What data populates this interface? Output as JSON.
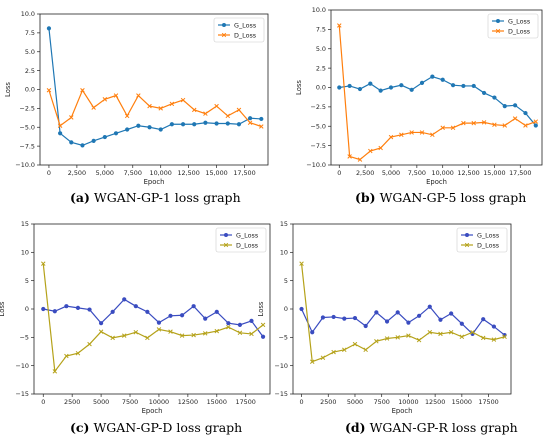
{
  "chart_data": [
    {
      "type": "line",
      "caption_tag": "(a)",
      "caption_text": "WGAN-GP-1 loss graph",
      "xlabel": "Epoch",
      "ylabel": "Loss",
      "xlim": [
        -800,
        19600
      ],
      "ylim": [
        -10,
        10
      ],
      "xticks": [
        0,
        2500,
        5000,
        7500,
        10000,
        12500,
        15000,
        17500
      ],
      "xtick_labels": [
        "0",
        "2,500",
        "5,000",
        "7,500",
        "10,000",
        "12,500",
        "15,000",
        "17,500"
      ],
      "yticks": [
        -10,
        -7.5,
        -5,
        -2.5,
        0,
        2.5,
        5,
        7.5,
        10
      ],
      "ytick_labels": [
        "−10.0",
        "−7.5",
        "−5.0",
        "−2.5",
        "0.0",
        "2.5",
        "5.0",
        "7.5",
        "10.0"
      ],
      "legend_position": "top-right",
      "x": [
        0,
        1000,
        2000,
        3000,
        4000,
        5000,
        6000,
        7000,
        8000,
        9000,
        10000,
        11000,
        12000,
        13000,
        14000,
        15000,
        16000,
        17000,
        18000,
        19000
      ],
      "series": [
        {
          "name": "G_Loss",
          "color": "#1f77b4",
          "marker": "circle",
          "values": [
            8.1,
            -5.8,
            -7.0,
            -7.4,
            -6.8,
            -6.3,
            -5.8,
            -5.3,
            -4.8,
            -5.0,
            -5.3,
            -4.6,
            -4.6,
            -4.6,
            -4.4,
            -4.5,
            -4.5,
            -4.6,
            -3.8,
            -3.9
          ]
        },
        {
          "name": "D_Loss",
          "color": "#ff7f0e",
          "marker": "x",
          "values": [
            -0.1,
            -4.8,
            -3.7,
            -0.1,
            -2.4,
            -1.3,
            -0.8,
            -3.5,
            -0.8,
            -2.2,
            -2.5,
            -1.9,
            -1.4,
            -2.7,
            -3.2,
            -2.2,
            -3.5,
            -2.7,
            -4.4,
            -4.9
          ]
        }
      ]
    },
    {
      "type": "line",
      "caption_tag": "(b)",
      "caption_text": "WGAN-GP-5 loss graph",
      "xlabel": "Epoch",
      "ylabel": "Loss",
      "xlim": [
        -800,
        19600
      ],
      "ylim": [
        -10,
        10
      ],
      "xticks": [
        0,
        2500,
        5000,
        7500,
        10000,
        12500,
        15000,
        17500
      ],
      "xtick_labels": [
        "0",
        "2,500",
        "5,000",
        "7,500",
        "10,000",
        "12,500",
        "15,000",
        "17,500"
      ],
      "yticks": [
        -10,
        -7.5,
        -5,
        -2.5,
        0,
        2.5,
        5,
        7.5,
        10
      ],
      "ytick_labels": [
        "−10.0",
        "−7.5",
        "−5.0",
        "−2.5",
        "0.0",
        "2.5",
        "5.0",
        "7.5",
        "10.0"
      ],
      "legend_position": "top-right",
      "x": [
        0,
        1000,
        2000,
        3000,
        4000,
        5000,
        6000,
        7000,
        8000,
        9000,
        10000,
        11000,
        12000,
        13000,
        14000,
        15000,
        16000,
        17000,
        18000,
        19000
      ],
      "series": [
        {
          "name": "G_Loss",
          "color": "#1f77b4",
          "marker": "circle",
          "values": [
            0.0,
            0.2,
            -0.2,
            0.5,
            -0.4,
            0.0,
            0.3,
            -0.3,
            0.6,
            1.4,
            1.0,
            0.3,
            0.2,
            0.2,
            -0.7,
            -1.3,
            -2.4,
            -2.3,
            -3.3,
            -4.9
          ]
        },
        {
          "name": "D_Loss",
          "color": "#ff7f0e",
          "marker": "x",
          "values": [
            8.0,
            -8.9,
            -9.3,
            -8.2,
            -7.8,
            -6.4,
            -6.1,
            -5.8,
            -5.8,
            -6.1,
            -5.2,
            -5.2,
            -4.6,
            -4.6,
            -4.5,
            -4.8,
            -4.9,
            -4.0,
            -4.9,
            -4.4
          ]
        }
      ]
    },
    {
      "type": "line",
      "caption_tag": "(c)",
      "caption_text": "WGAN-GP-D loss graph",
      "xlabel": "Epoch",
      "ylabel": "Loss",
      "xlim": [
        -800,
        19600
      ],
      "ylim": [
        -15,
        15
      ],
      "xticks": [
        0,
        2500,
        5000,
        7500,
        10000,
        12500,
        15000,
        17500
      ],
      "xtick_labels": [
        "0",
        "2500",
        "5000",
        "7500",
        "10000",
        "12500",
        "15000",
        "17500"
      ],
      "yticks": [
        -15,
        -10,
        -5,
        0,
        5,
        10,
        15
      ],
      "ytick_labels": [
        "−15",
        "−10",
        "−5",
        "0",
        "5",
        "10",
        "15"
      ],
      "legend_position": "top-right",
      "x": [
        0,
        1000,
        2000,
        3000,
        4000,
        5000,
        6000,
        7000,
        8000,
        9000,
        10000,
        11000,
        12000,
        13000,
        14000,
        15000,
        16000,
        17000,
        18000,
        19000
      ],
      "series": [
        {
          "name": "G_Loss",
          "color": "#3a4cc0",
          "marker": "circle",
          "values": [
            0.0,
            -0.4,
            0.5,
            0.2,
            -0.1,
            -2.5,
            -0.5,
            1.7,
            0.5,
            -0.5,
            -2.4,
            -1.2,
            -1.1,
            0.5,
            -1.7,
            -0.5,
            -2.5,
            -2.8,
            -2.1,
            -4.9
          ]
        },
        {
          "name": "D_Loss",
          "color": "#b5a21a",
          "marker": "x",
          "values": [
            8.0,
            -11.0,
            -8.3,
            -7.8,
            -6.2,
            -4.0,
            -5.1,
            -4.7,
            -4.1,
            -5.1,
            -3.6,
            -4.0,
            -4.7,
            -4.6,
            -4.3,
            -3.9,
            -3.2,
            -4.2,
            -4.4,
            -2.8
          ]
        }
      ]
    },
    {
      "type": "line",
      "caption_tag": "(d)",
      "caption_text": "WGAN-GP-R loss graph",
      "xlabel": "Epoch",
      "ylabel": "Loss",
      "xlim": [
        -800,
        19600
      ],
      "ylim": [
        -15,
        15
      ],
      "xticks": [
        0,
        2500,
        5000,
        7500,
        10000,
        12500,
        15000,
        17500
      ],
      "xtick_labels": [
        "0",
        "2500",
        "5000",
        "7500",
        "10000",
        "12500",
        "15000",
        "17500"
      ],
      "yticks": [
        -15,
        -10,
        -5,
        0,
        5,
        10,
        15
      ],
      "ytick_labels": [
        "−15",
        "−10",
        "−5",
        "0",
        "5",
        "10",
        "15"
      ],
      "legend_position": "top-right",
      "x": [
        0,
        1000,
        2000,
        3000,
        4000,
        5000,
        6000,
        7000,
        8000,
        9000,
        10000,
        11000,
        12000,
        13000,
        14000,
        15000,
        16000,
        17000,
        18000,
        19000
      ],
      "series": [
        {
          "name": "G_Loss",
          "color": "#3a4cc0",
          "marker": "circle",
          "values": [
            0.0,
            -4.1,
            -1.5,
            -1.4,
            -1.7,
            -1.6,
            -3.0,
            -0.6,
            -2.2,
            -0.6,
            -2.4,
            -1.2,
            0.4,
            -1.9,
            -0.8,
            -2.6,
            -4.4,
            -1.8,
            -3.1,
            -4.6
          ]
        },
        {
          "name": "D_Loss",
          "color": "#b5a21a",
          "marker": "x",
          "values": [
            8.0,
            -9.3,
            -8.6,
            -7.6,
            -7.2,
            -6.2,
            -7.2,
            -5.7,
            -5.2,
            -5.0,
            -4.7,
            -5.5,
            -4.1,
            -4.4,
            -4.1,
            -4.9,
            -4.1,
            -5.1,
            -5.4,
            -4.9
          ]
        }
      ]
    }
  ]
}
